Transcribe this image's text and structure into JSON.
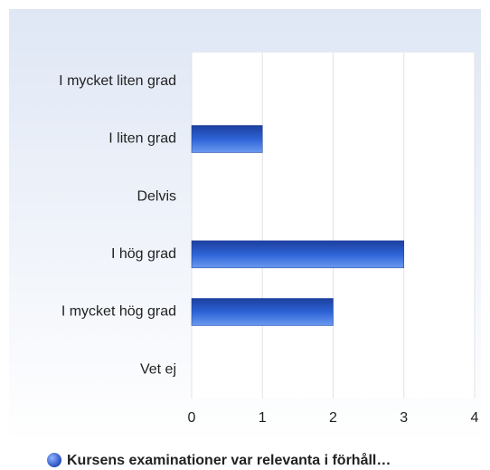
{
  "chart_data": {
    "type": "bar",
    "orientation": "horizontal",
    "categories": [
      "I mycket liten grad",
      "I liten grad",
      "Delvis",
      "I hög grad",
      "I mycket hög grad",
      "Vet ej"
    ],
    "series": [
      {
        "name": "Kursens examinationer var relevanta i förhåll…",
        "color": "#2d63d6",
        "values": [
          0,
          1,
          0,
          3,
          2,
          0
        ]
      }
    ],
    "xlim": [
      0,
      4
    ],
    "xticks": [
      0,
      1,
      2,
      3,
      4
    ],
    "grid": true,
    "legend": "bottom"
  }
}
